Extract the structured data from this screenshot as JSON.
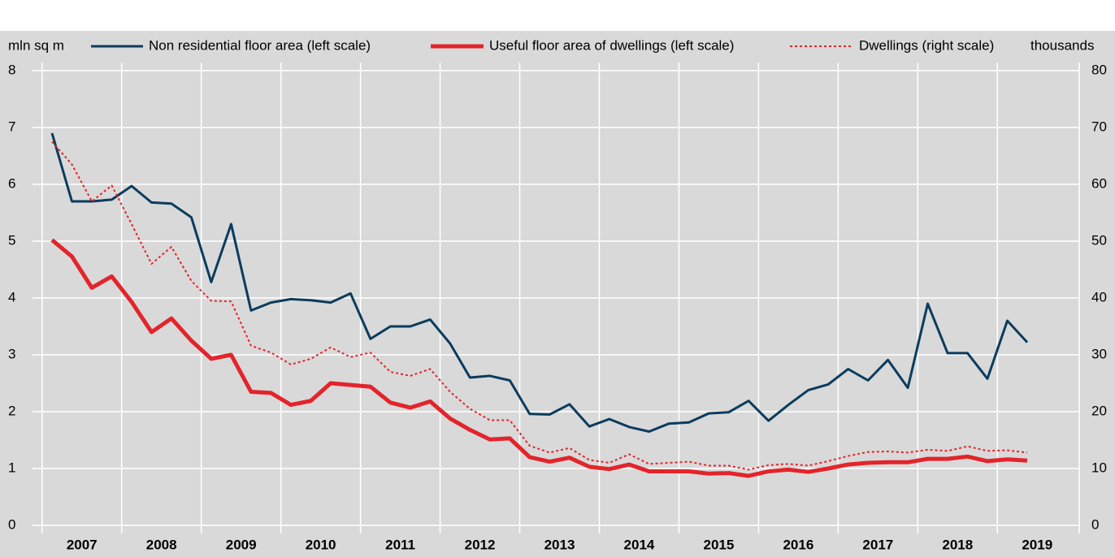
{
  "chart_data": {
    "type": "line",
    "y_label": "mln sq m",
    "y2_label": "thousands",
    "categories": [
      "2007",
      null,
      null,
      null,
      "2008",
      null,
      null,
      null,
      "2009",
      null,
      null,
      null,
      "2010",
      null,
      null,
      null,
      "2011",
      null,
      null,
      null,
      "2012",
      null,
      null,
      null,
      "2013",
      null,
      null,
      null,
      "2014",
      null,
      null,
      null,
      "2015",
      null,
      null,
      null,
      "2016",
      null,
      null,
      null,
      "2017",
      null,
      null,
      null,
      "2018",
      null,
      null,
      null,
      "2019",
      null
    ],
    "series": [
      {
        "name": "Non residential floor area (left scale)",
        "color": "#0b3c5d",
        "style": "solid",
        "values": [
          6.9,
          5.7,
          5.7,
          5.73,
          5.97,
          5.68,
          5.66,
          5.42,
          4.28,
          5.3,
          3.78,
          3.92,
          3.98,
          3.96,
          3.92,
          4.08,
          3.28,
          3.5,
          3.5,
          3.62,
          3.2,
          2.6,
          2.63,
          2.55,
          1.96,
          1.95,
          2.13,
          1.74,
          1.87,
          1.73,
          1.65,
          1.79,
          1.81,
          1.97,
          1.99,
          2.19,
          1.84,
          2.12,
          2.38,
          2.48,
          2.75,
          2.55,
          2.91,
          2.42,
          3.9,
          3.03,
          3.03,
          2.58,
          3.6,
          3.22
        ]
      },
      {
        "name": "Useful floor area of dwellings (left scale)",
        "color": "#e3242b",
        "style": "thick",
        "values": [
          5.02,
          4.73,
          4.18,
          4.38,
          3.93,
          3.4,
          3.64,
          3.25,
          2.93,
          3.0,
          2.35,
          2.33,
          2.12,
          2.19,
          2.5,
          2.47,
          2.44,
          2.16,
          2.07,
          2.18,
          1.88,
          1.68,
          1.51,
          1.53,
          1.2,
          1.12,
          1.19,
          1.03,
          0.99,
          1.07,
          0.95,
          0.95,
          0.95,
          0.91,
          0.92,
          0.87,
          0.95,
          0.98,
          0.94,
          1.0,
          1.07,
          1.1,
          1.11,
          1.11,
          1.17,
          1.17,
          1.21,
          1.13,
          1.16,
          1.14
        ]
      },
      {
        "name": "Dwellings (right scale)",
        "color": "#e3242b",
        "style": "dotted",
        "axis": "y2",
        "values": [
          67.5,
          63.5,
          57,
          59.8,
          53,
          46,
          49,
          43,
          39.5,
          39.4,
          31.6,
          30.4,
          28.3,
          29.3,
          31.3,
          29.6,
          30.4,
          27,
          26.3,
          27.5,
          23.5,
          20.5,
          18.5,
          18.5,
          14,
          12.8,
          13.6,
          11.5,
          11,
          12.5,
          10.8,
          11,
          11.2,
          10.5,
          10.5,
          9.8,
          10.6,
          10.8,
          10.5,
          11.3,
          12.2,
          12.9,
          13,
          12.8,
          13.3,
          13.1,
          13.9,
          13.1,
          13.2,
          12.8
        ]
      }
    ],
    "ylim": [
      0,
      8
    ],
    "yticks": [
      0,
      1,
      2,
      3,
      4,
      5,
      6,
      7,
      8
    ],
    "y2lim": [
      0,
      80
    ],
    "y2ticks": [
      0,
      10,
      20,
      30,
      40,
      50,
      60,
      70,
      80
    ],
    "grid": true
  }
}
